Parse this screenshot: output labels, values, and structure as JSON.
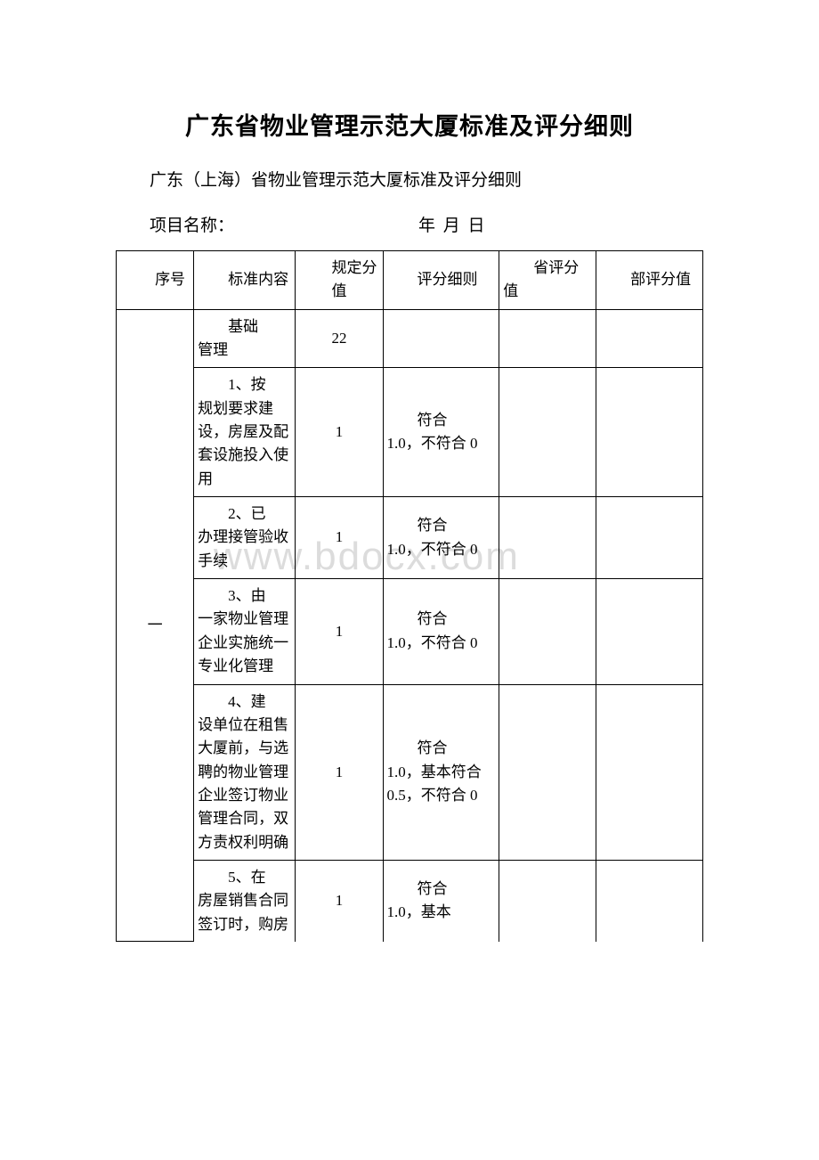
{
  "title": "广东省物业管理示范大厦标准及评分细则",
  "subtitle": "广东（上海）省物业管理示范大厦标准及评分细则",
  "meta": {
    "project_label": "项目名称：",
    "date_label": "年  月  日"
  },
  "watermark": "www.bdocx.com",
  "table": {
    "headers": {
      "seq": "序号",
      "std": "标准内容",
      "val": "规定分值",
      "rule": "评分细则",
      "prov": "省评分值",
      "dept": "部评分值"
    },
    "section_seq": "一",
    "rows": [
      {
        "std_first": "基础",
        "std_rest": "管理",
        "val": "22",
        "rule_first": "",
        "rule_rest": ""
      },
      {
        "std_first": "1、按",
        "std_rest": "规划要求建设，房屋及配套设施投入使用",
        "val": "1",
        "rule_first": "符合",
        "rule_rest": "1.0，不符合 0"
      },
      {
        "std_first": "2、已",
        "std_rest": "办理接管验收手续",
        "val": "1",
        "rule_first": "符合",
        "rule_rest": "1.0，不符合 0"
      },
      {
        "std_first": "3、由",
        "std_rest": "一家物业管理企业实施统一专业化管理",
        "val": "1",
        "rule_first": "符合",
        "rule_rest": "1.0，不符合 0"
      },
      {
        "std_first": "4、建",
        "std_rest": "设单位在租售大厦前，与选聘的物业管理企业签订物业管理合同，双方责权利明确",
        "val": "1",
        "rule_first": "符合",
        "rule_rest": "1.0，基本符合 0.5，不符合 0"
      },
      {
        "std_first": "5、在",
        "std_rest": "房屋销售合同签订时，购房",
        "val": "1",
        "rule_first": "符合",
        "rule_rest": "1.0，基本"
      }
    ]
  },
  "colors": {
    "text": "#000000",
    "background": "#ffffff",
    "border": "#000000",
    "watermark": "#dcdcdc"
  }
}
